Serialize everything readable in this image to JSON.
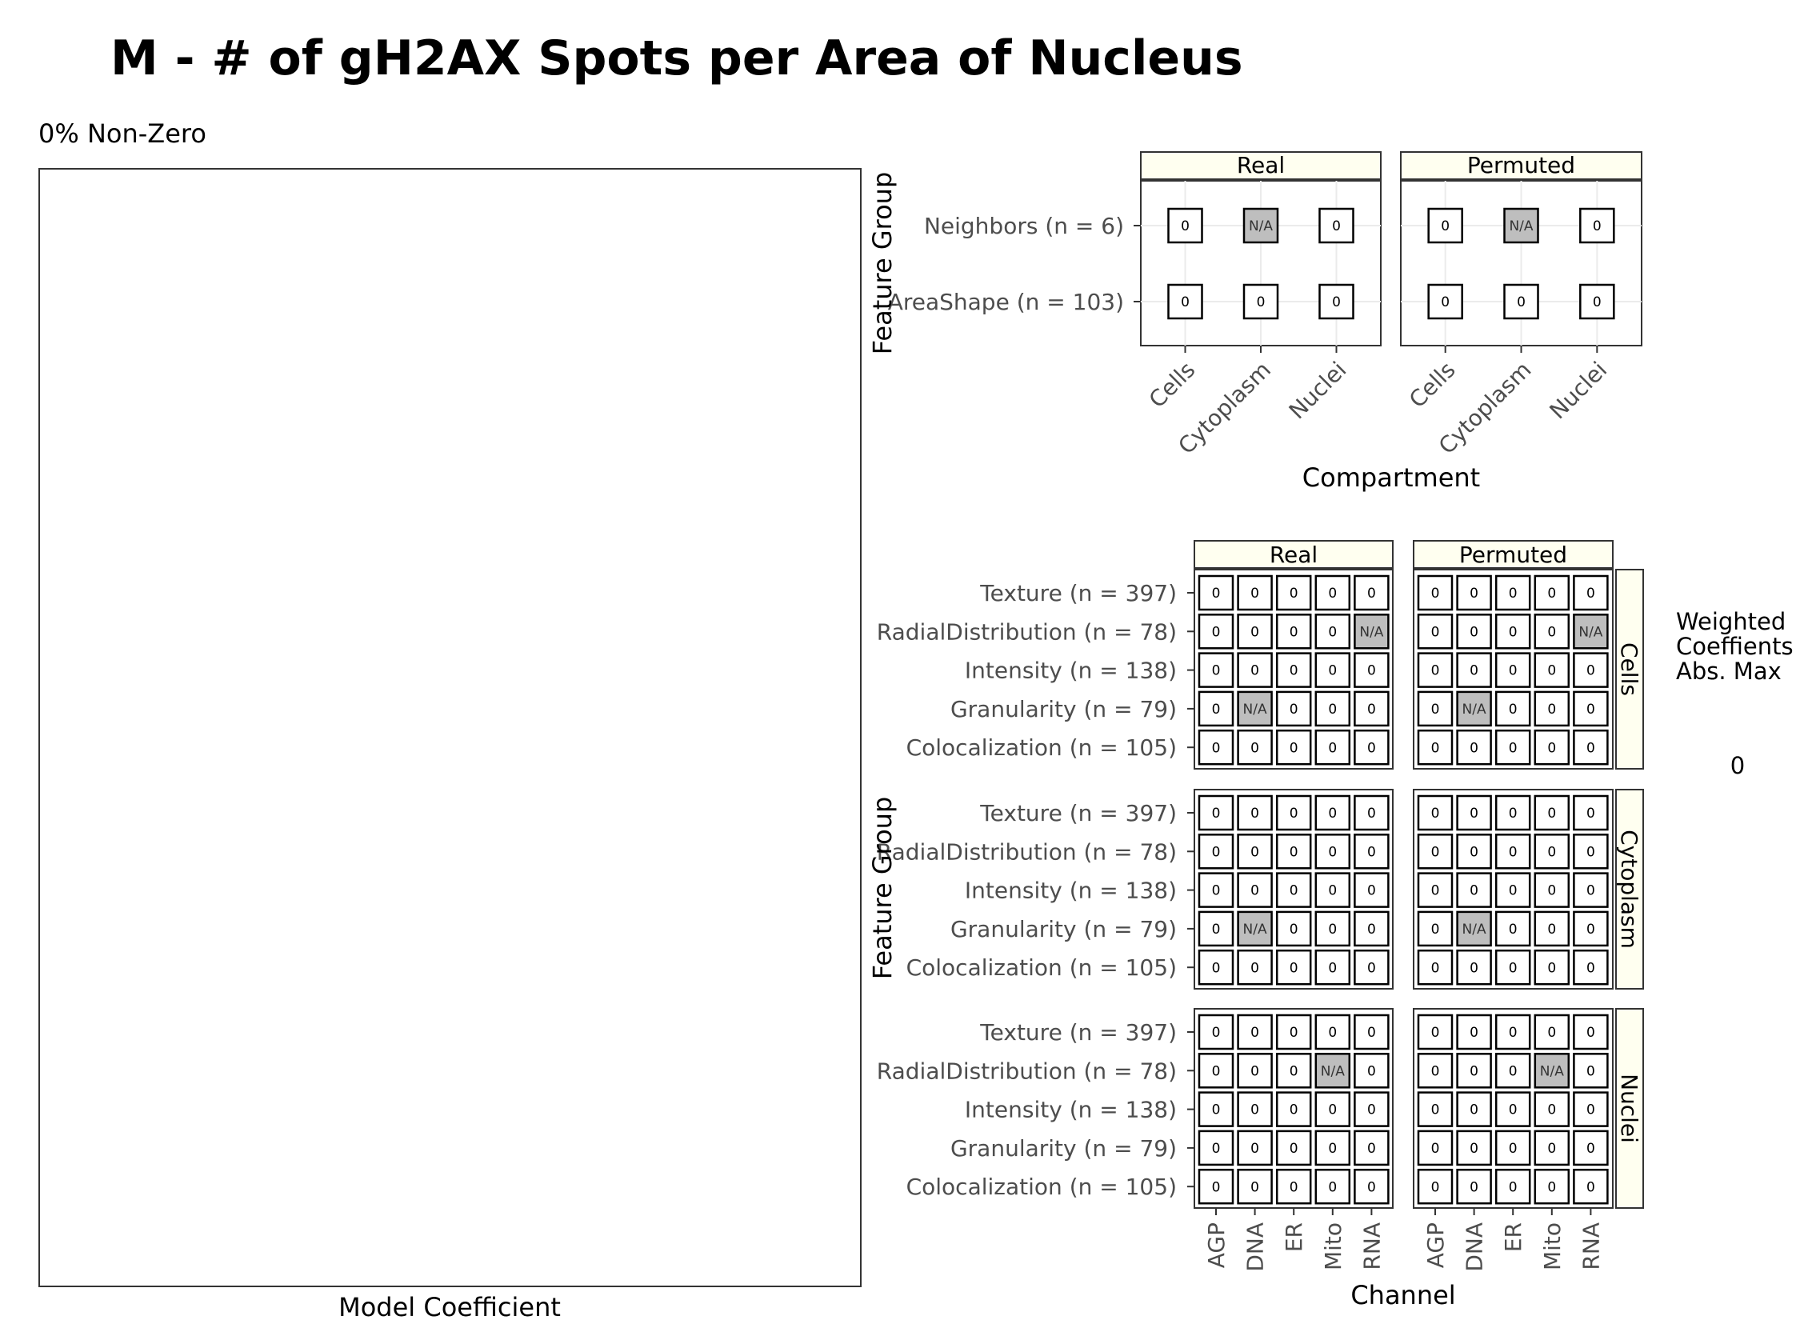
{
  "title": "M - # of gH2AX Spots per Area of Nucleus",
  "left_panel": {
    "subtitle": "0% Non-Zero",
    "xlabel": "Model Coefficient"
  },
  "legend": {
    "title_lines": [
      "Weighted",
      "Coeffients",
      "Abs. Max"
    ],
    "value": "0"
  },
  "colors": {
    "strip_fill": "#fffff0",
    "tile_fill": "#ffffff",
    "na_fill": "#bebebe",
    "grid": "#ebebeb",
    "axis_text": "#4d4d4d"
  },
  "chart_data": [
    {
      "type": "heatmap",
      "name": "compartment-grid",
      "facets": [
        "Real",
        "Permuted"
      ],
      "x_categories": [
        "Cells",
        "Cytoplasm",
        "Nuclei"
      ],
      "y_categories": [
        "Neighbors (n = 6)",
        "AreaShape (n = 103)"
      ],
      "xlabel": "Compartment",
      "ylabel": "Feature Group",
      "cells": {
        "Real": [
          [
            "0",
            "N/A",
            "0"
          ],
          [
            "0",
            "0",
            "0"
          ]
        ],
        "Permuted": [
          [
            "0",
            "N/A",
            "0"
          ],
          [
            "0",
            "0",
            "0"
          ]
        ]
      }
    },
    {
      "type": "heatmap",
      "name": "channel-grid",
      "facets_col": [
        "Real",
        "Permuted"
      ],
      "facets_row": [
        "Cells",
        "Cytoplasm",
        "Nuclei"
      ],
      "x_categories": [
        "AGP",
        "DNA",
        "ER",
        "Mito",
        "RNA"
      ],
      "y_categories": [
        "Texture (n = 397)",
        "RadialDistribution (n = 78)",
        "Intensity (n = 138)",
        "Granularity (n = 79)",
        "Colocalization (n = 105)"
      ],
      "xlabel": "Channel",
      "ylabel": "Feature Group",
      "cells": {
        "Cells": {
          "Real": [
            [
              "0",
              "0",
              "0",
              "0",
              "0"
            ],
            [
              "0",
              "0",
              "0",
              "0",
              "N/A"
            ],
            [
              "0",
              "0",
              "0",
              "0",
              "0"
            ],
            [
              "0",
              "N/A",
              "0",
              "0",
              "0"
            ],
            [
              "0",
              "0",
              "0",
              "0",
              "0"
            ]
          ],
          "Permuted": [
            [
              "0",
              "0",
              "0",
              "0",
              "0"
            ],
            [
              "0",
              "0",
              "0",
              "0",
              "N/A"
            ],
            [
              "0",
              "0",
              "0",
              "0",
              "0"
            ],
            [
              "0",
              "N/A",
              "0",
              "0",
              "0"
            ],
            [
              "0",
              "0",
              "0",
              "0",
              "0"
            ]
          ]
        },
        "Cytoplasm": {
          "Real": [
            [
              "0",
              "0",
              "0",
              "0",
              "0"
            ],
            [
              "0",
              "0",
              "0",
              "0",
              "0"
            ],
            [
              "0",
              "0",
              "0",
              "0",
              "0"
            ],
            [
              "0",
              "N/A",
              "0",
              "0",
              "0"
            ],
            [
              "0",
              "0",
              "0",
              "0",
              "0"
            ]
          ],
          "Permuted": [
            [
              "0",
              "0",
              "0",
              "0",
              "0"
            ],
            [
              "0",
              "0",
              "0",
              "0",
              "0"
            ],
            [
              "0",
              "0",
              "0",
              "0",
              "0"
            ],
            [
              "0",
              "N/A",
              "0",
              "0",
              "0"
            ],
            [
              "0",
              "0",
              "0",
              "0",
              "0"
            ]
          ]
        },
        "Nuclei": {
          "Real": [
            [
              "0",
              "0",
              "0",
              "0",
              "0"
            ],
            [
              "0",
              "0",
              "0",
              "N/A",
              "0"
            ],
            [
              "0",
              "0",
              "0",
              "0",
              "0"
            ],
            [
              "0",
              "0",
              "0",
              "0",
              "0"
            ],
            [
              "0",
              "0",
              "0",
              "0",
              "0"
            ]
          ],
          "Permuted": [
            [
              "0",
              "0",
              "0",
              "0",
              "0"
            ],
            [
              "0",
              "0",
              "0",
              "N/A",
              "0"
            ],
            [
              "0",
              "0",
              "0",
              "0",
              "0"
            ],
            [
              "0",
              "0",
              "0",
              "0",
              "0"
            ],
            [
              "0",
              "0",
              "0",
              "0",
              "0"
            ]
          ]
        }
      }
    }
  ]
}
